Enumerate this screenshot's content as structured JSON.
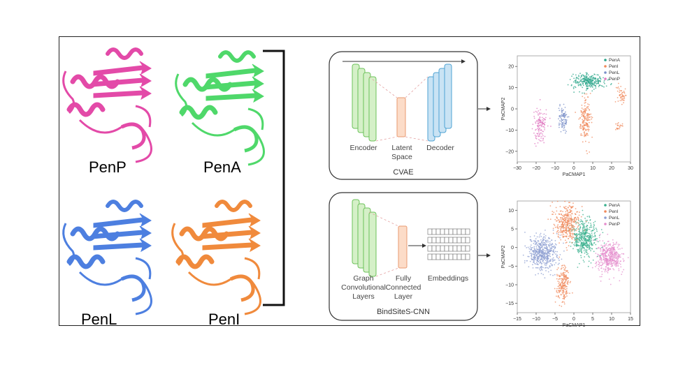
{
  "proteins": [
    {
      "name": "PenP",
      "color": "#e34aa8"
    },
    {
      "name": "PenA",
      "color": "#4fd86a"
    },
    {
      "name": "PenL",
      "color": "#4d7fe0"
    },
    {
      "name": "PenI",
      "color": "#f08a3c"
    }
  ],
  "cvae": {
    "title": "CVAE",
    "encoder_label": "Encoder",
    "latent_label_1": "Latent",
    "latent_label_2": "Space",
    "decoder_label": "Decoder"
  },
  "cnn": {
    "title": "BindSiteS-CNN",
    "gcl_label_1": "Graph",
    "gcl_label_2": "Convolutional",
    "gcl_label_3": "Layers",
    "fc_label_1": "Fully",
    "fc_label_2": "Connected",
    "fc_label_3": "Layer",
    "emb_label": "Embeddings"
  },
  "chart_data": [
    {
      "type": "scatter",
      "xlabel": "PaCMAP1",
      "ylabel": "PaCMAP2",
      "xlim": [
        -30,
        30
      ],
      "ylim": [
        -25,
        25
      ],
      "xticks": [
        "−30",
        "−20",
        "−10",
        "0",
        "10",
        "20",
        "30"
      ],
      "yticks": [
        "20",
        "10",
        "0",
        "−10",
        "−20"
      ],
      "legend": [
        "PenA",
        "PenI",
        "PenL",
        "PenP"
      ],
      "legend_position": "top-right",
      "series_colors": {
        "PenA": "#2aa58a",
        "PenI": "#f08a5c",
        "PenL": "#7a8fc8",
        "PenP": "#e07ac2"
      },
      "clusters": [
        {
          "series": "PenA",
          "center": [
            8,
            13
          ],
          "spread": [
            7,
            3
          ],
          "count": 260
        },
        {
          "series": "PenL",
          "center": [
            -6,
            -5
          ],
          "spread": [
            2,
            5
          ],
          "count": 90
        },
        {
          "series": "PenI",
          "center": [
            6,
            -5
          ],
          "spread": [
            2.5,
            8
          ],
          "count": 180
        },
        {
          "series": "PenI",
          "center": [
            25,
            7
          ],
          "spread": [
            2,
            4
          ],
          "count": 50
        },
        {
          "series": "PenI",
          "center": [
            24,
            -8
          ],
          "spread": [
            1.5,
            1.5
          ],
          "count": 20
        },
        {
          "series": "PenP",
          "center": [
            -18,
            -8
          ],
          "spread": [
            3,
            7
          ],
          "count": 130
        }
      ]
    },
    {
      "type": "scatter",
      "xlabel": "PaCMAP1",
      "ylabel": "PaCMAP2",
      "xlim": [
        -15,
        17
      ],
      "ylim": [
        -16,
        14
      ],
      "xticks": [
        "−15",
        "−10",
        "−5",
        "0",
        "5",
        "10",
        "15"
      ],
      "yticks": [
        "10",
        "5",
        "0",
        "−5",
        "−10",
        "−15"
      ],
      "legend": [
        "PenA",
        "PenI",
        "PenL",
        "PenP"
      ],
      "legend_position": "top-right",
      "series_colors": {
        "PenA": "#3ab08e",
        "PenI": "#f08a5c",
        "PenL": "#8e9fd2",
        "PenP": "#e48ccc"
      },
      "clusters": [
        {
          "series": "PenL",
          "center": [
            -8,
            0
          ],
          "spread": [
            3.5,
            4
          ],
          "count": 500
        },
        {
          "series": "PenP",
          "center": [
            11,
            -1
          ],
          "spread": [
            3,
            3.5
          ],
          "count": 420
        },
        {
          "series": "PenA",
          "center": [
            4,
            4
          ],
          "spread": [
            3,
            4
          ],
          "count": 420
        },
        {
          "series": "PenI",
          "center": [
            -1,
            8
          ],
          "spread": [
            3,
            4
          ],
          "count": 350
        },
        {
          "series": "PenI",
          "center": [
            -2,
            -8
          ],
          "spread": [
            1.5,
            4
          ],
          "count": 200
        }
      ]
    }
  ]
}
